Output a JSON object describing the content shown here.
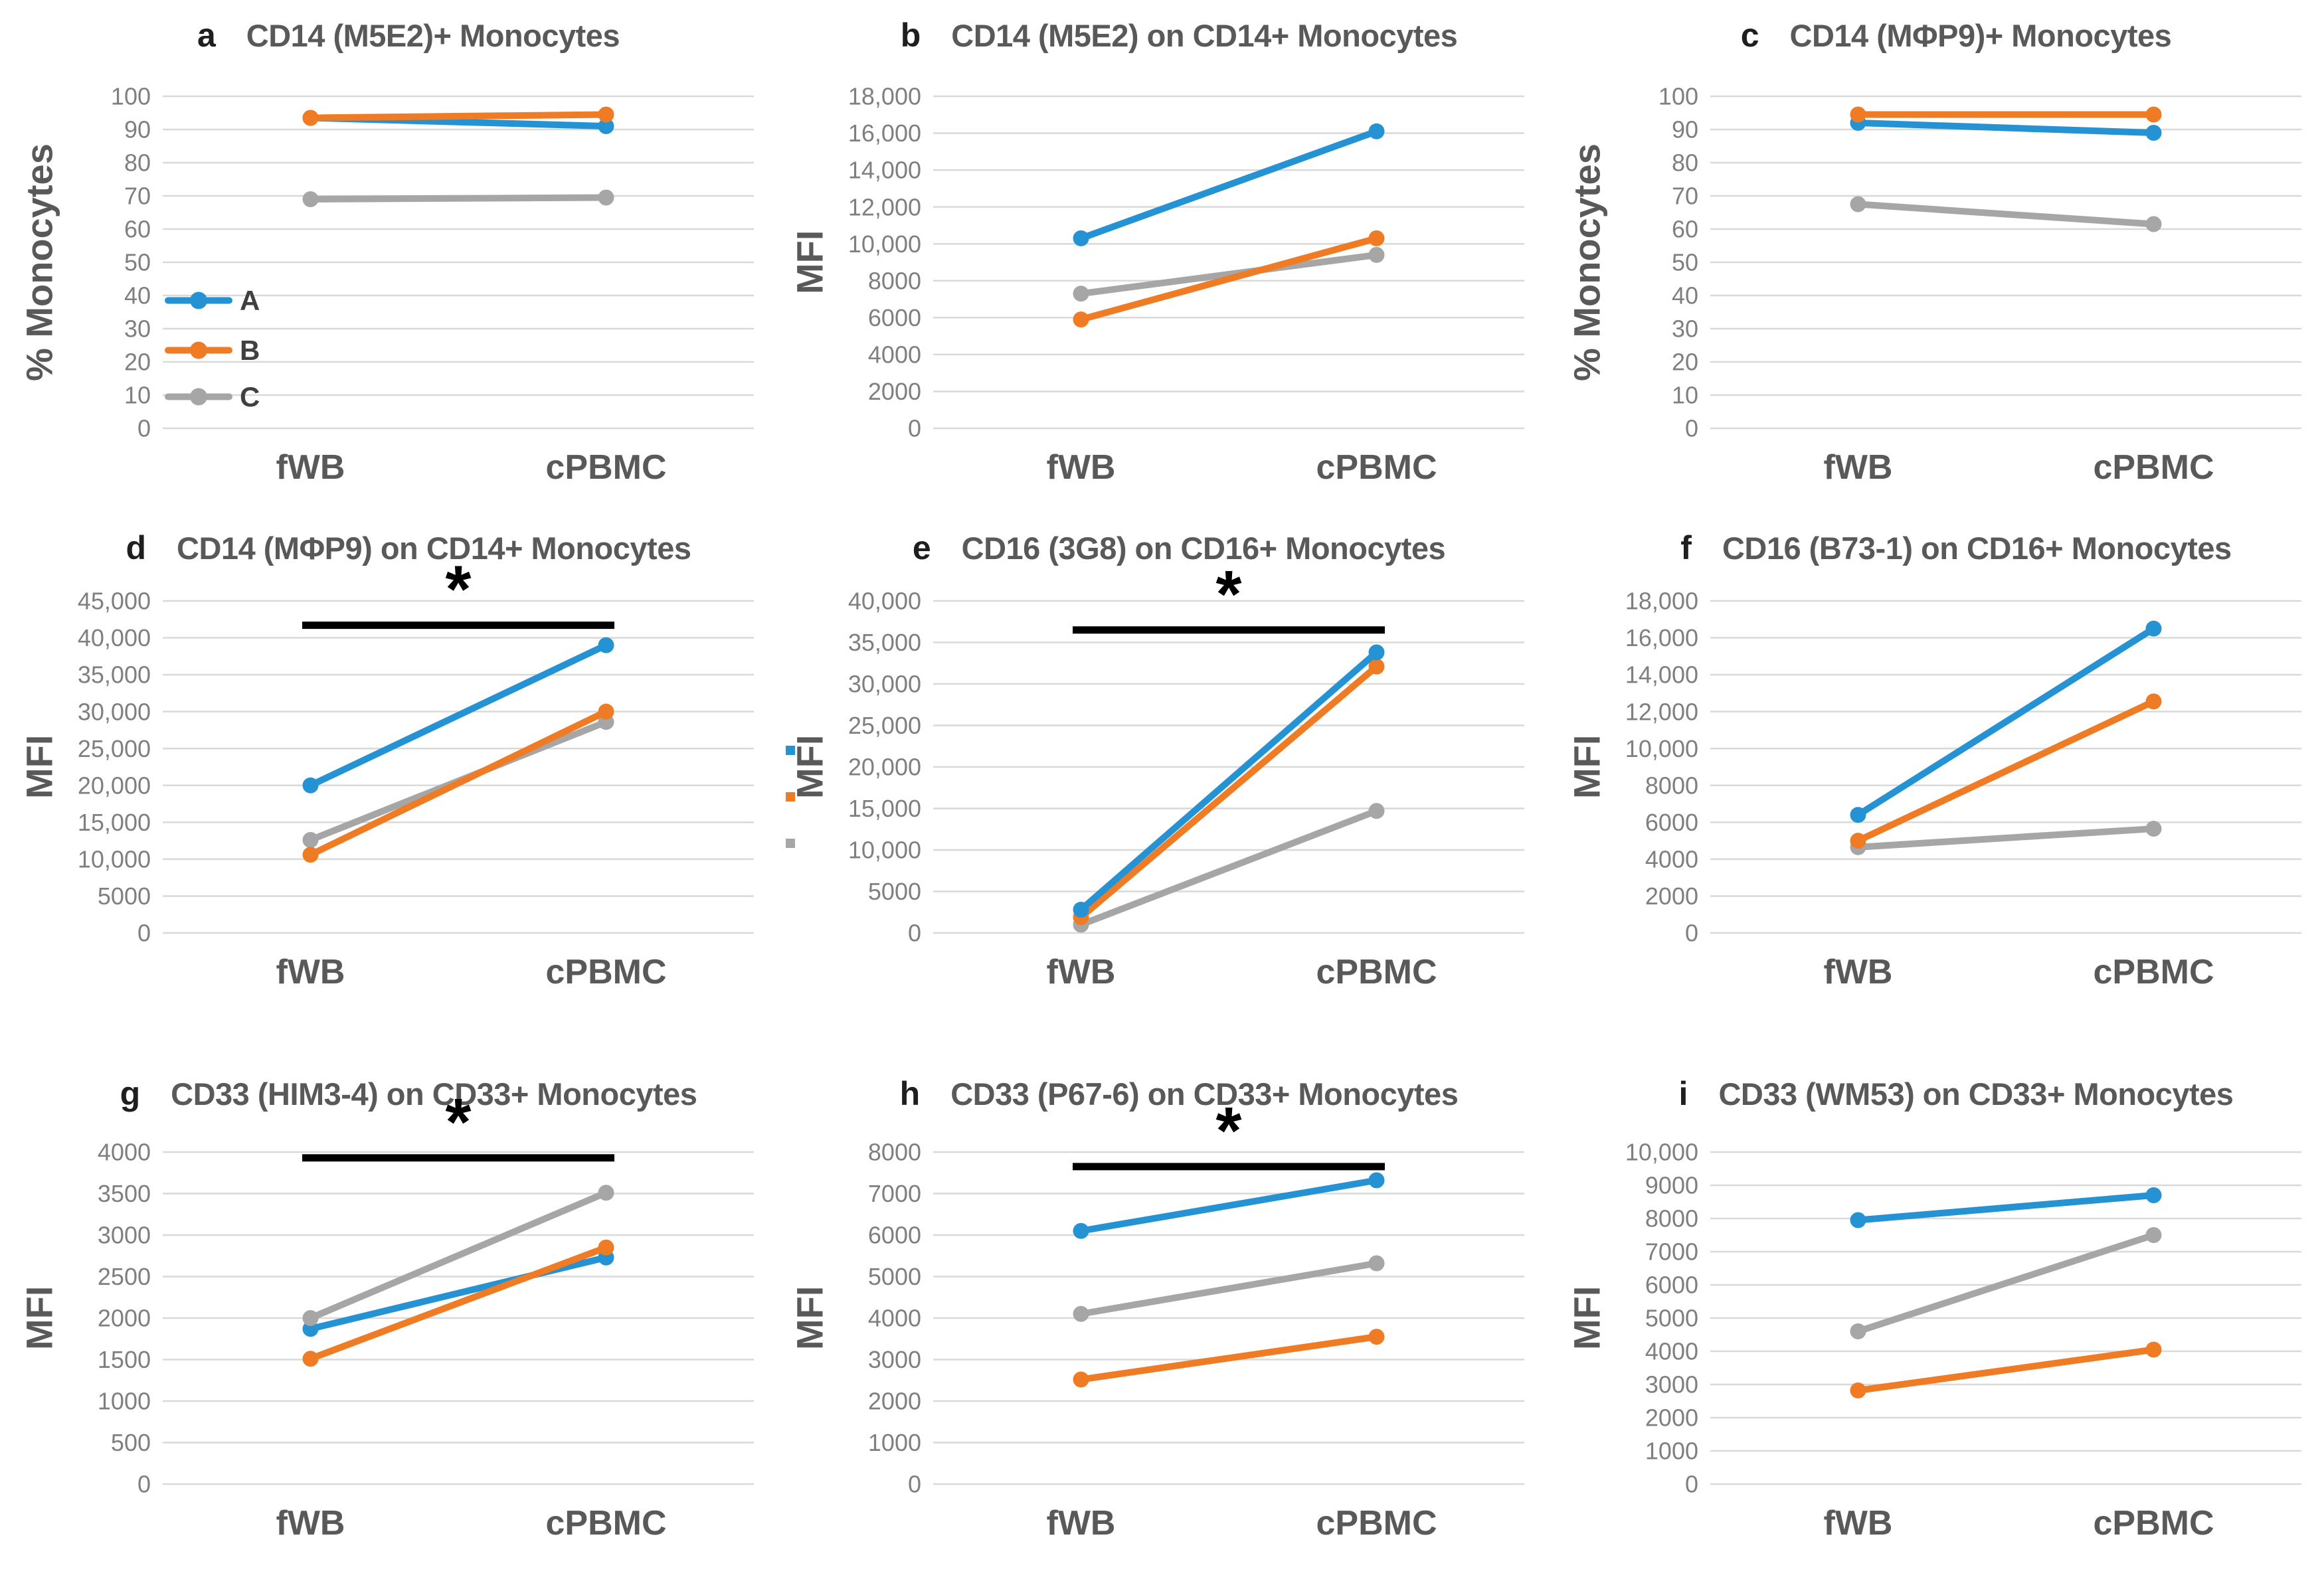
{
  "figure": {
    "background": "#FFFFFF"
  },
  "palette": {
    "A": "#2593D3",
    "B": "#F07B25",
    "C": "#A6A6A6",
    "grid": "#D9D9D9",
    "tick_text": "#7F7F7F",
    "axis_text": "#595959",
    "letter_text": "#1F1F1F",
    "legend_text": "#404040",
    "sig": "#000000"
  },
  "chart_data": [
    {
      "id": "a",
      "type": "line",
      "letter": "a",
      "title": "CD14 (M5E2)+ Monocytes",
      "ylabel": "% Monocytes",
      "ymax": 100,
      "ylim": [
        0,
        100
      ],
      "ticks": [
        "100",
        "90",
        "80",
        "70",
        "60",
        "50",
        "40",
        "30",
        "20",
        "10",
        "0"
      ],
      "categories": [
        "fWB",
        "cPBMC"
      ],
      "series": [
        {
          "name": "C",
          "color_key": "C",
          "values": [
            69,
            69.5
          ]
        },
        {
          "name": "A",
          "color_key": "A",
          "values": [
            93.5,
            91
          ]
        },
        {
          "name": "B",
          "color_key": "B",
          "values": [
            93.5,
            94.5
          ]
        }
      ],
      "legend": [
        {
          "label": "A",
          "color_key": "A",
          "at_value": 38.5
        },
        {
          "label": "B",
          "color_key": "B",
          "at_value": 23.5
        },
        {
          "label": "C",
          "color_key": "C",
          "at_value": 9.5
        }
      ]
    },
    {
      "id": "b",
      "type": "line",
      "letter": "b",
      "title": "CD14 (M5E2) on CD14+ Monocytes",
      "ylabel": "MFI",
      "ymax": 18000,
      "ylim": [
        0,
        18000
      ],
      "ticks": [
        "18,000",
        "16,000",
        "14,000",
        "12,000",
        "10,000",
        "8000",
        "6000",
        "4000",
        "2000",
        "0"
      ],
      "categories": [
        "fWB",
        "cPBMC"
      ],
      "series": [
        {
          "name": "C",
          "color_key": "C",
          "values": [
            7300,
            9400
          ]
        },
        {
          "name": "B",
          "color_key": "B",
          "values": [
            5900,
            10300
          ]
        },
        {
          "name": "A",
          "color_key": "A",
          "values": [
            10300,
            16100
          ]
        }
      ]
    },
    {
      "id": "c",
      "type": "line",
      "letter": "c",
      "title": "CD14 (MΦP9)+ Monocytes",
      "ylabel": "% Monocytes",
      "ymax": 100,
      "ylim": [
        0,
        100
      ],
      "ticks": [
        "100",
        "90",
        "80",
        "70",
        "60",
        "50",
        "40",
        "30",
        "20",
        "10",
        "0"
      ],
      "categories": [
        "fWB",
        "cPBMC"
      ],
      "series": [
        {
          "name": "C",
          "color_key": "C",
          "values": [
            67.5,
            61.5
          ]
        },
        {
          "name": "A",
          "color_key": "A",
          "values": [
            92,
            89
          ]
        },
        {
          "name": "B",
          "color_key": "B",
          "values": [
            94.5,
            94.5
          ]
        }
      ]
    },
    {
      "id": "d",
      "type": "line",
      "letter": "d",
      "title": "CD14 (MΦP9) on CD14+ Monocytes",
      "ylabel": "MFI",
      "ymax": 45000,
      "ylim": [
        0,
        45000
      ],
      "ticks": [
        "45,000",
        "40,000",
        "35,000",
        "30,000",
        "25,000",
        "20,000",
        "15,000",
        "10,000",
        "5000",
        "0"
      ],
      "categories": [
        "fWB",
        "cPBMC"
      ],
      "sig": {
        "label": "*",
        "y": 41700
      },
      "series": [
        {
          "name": "C",
          "color_key": "C",
          "values": [
            12600,
            28600
          ]
        },
        {
          "name": "B",
          "color_key": "B",
          "values": [
            10600,
            30000
          ]
        },
        {
          "name": "A",
          "color_key": "A",
          "values": [
            20000,
            39000
          ]
        }
      ]
    },
    {
      "id": "e",
      "type": "line",
      "letter": "e",
      "title": "CD16 (3G8) on CD16+ Monocytes",
      "ylabel": "MFI",
      "ymax": 40000,
      "ylim": [
        0,
        40000
      ],
      "ticks": [
        "40,000",
        "35,000",
        "30,000",
        "25,000",
        "20,000",
        "15,000",
        "10,000",
        "5000",
        "0"
      ],
      "categories": [
        "fWB",
        "cPBMC"
      ],
      "sig": {
        "label": "*",
        "y": 36500
      },
      "series": [
        {
          "name": "C",
          "color_key": "C",
          "values": [
            1000,
            14700
          ]
        },
        {
          "name": "B",
          "color_key": "B",
          "values": [
            1900,
            32100
          ]
        },
        {
          "name": "A",
          "color_key": "A",
          "values": [
            2800,
            33800
          ]
        }
      ],
      "stray_markers": [
        {
          "color_key": "A"
        },
        {
          "color_key": "B"
        },
        {
          "color_key": "C"
        }
      ]
    },
    {
      "id": "f",
      "type": "line",
      "letter": "f",
      "title": "CD16 (B73-1) on CD16+ Monocytes",
      "ylabel": "MFI",
      "ymax": 18000,
      "ylim": [
        0,
        18000
      ],
      "ticks": [
        "18,000",
        "16,000",
        "14,000",
        "12,000",
        "10,000",
        "8000",
        "6000",
        "4000",
        "2000",
        "0"
      ],
      "categories": [
        "fWB",
        "cPBMC"
      ],
      "series": [
        {
          "name": "C",
          "color_key": "C",
          "values": [
            4650,
            5650
          ]
        },
        {
          "name": "B",
          "color_key": "B",
          "values": [
            5000,
            12550
          ]
        },
        {
          "name": "A",
          "color_key": "A",
          "values": [
            6400,
            16500
          ]
        }
      ]
    },
    {
      "id": "g",
      "type": "line",
      "letter": "g",
      "title": "CD33 (HIM3-4) on CD33+ Monocytes",
      "ylabel": "MFI",
      "ymax": 4000,
      "ylim": [
        0,
        4000
      ],
      "ticks": [
        "4000",
        "3500",
        "3000",
        "2500",
        "2000",
        "1500",
        "1000",
        "500",
        "0"
      ],
      "categories": [
        "fWB",
        "cPBMC"
      ],
      "sig": {
        "label": "*",
        "y": 3930
      },
      "series": [
        {
          "name": "A",
          "color_key": "A",
          "values": [
            1870,
            2730
          ]
        },
        {
          "name": "B",
          "color_key": "B",
          "values": [
            1510,
            2850
          ]
        },
        {
          "name": "C",
          "color_key": "C",
          "values": [
            2000,
            3510
          ]
        }
      ]
    },
    {
      "id": "h",
      "type": "line",
      "letter": "h",
      "title": "CD33 (P67-6) on CD33+ Monocytes",
      "ylabel": "MFI",
      "ymax": 8000,
      "ylim": [
        0,
        8000
      ],
      "ticks": [
        "8000",
        "7000",
        "6000",
        "5000",
        "4000",
        "3000",
        "2000",
        "1000",
        "0"
      ],
      "categories": [
        "fWB",
        "cPBMC"
      ],
      "sig": {
        "label": "*",
        "y": 7650
      },
      "series": [
        {
          "name": "C",
          "color_key": "C",
          "values": [
            4100,
            5320
          ]
        },
        {
          "name": "B",
          "color_key": "B",
          "values": [
            2520,
            3550
          ]
        },
        {
          "name": "A",
          "color_key": "A",
          "values": [
            6100,
            7320
          ]
        }
      ]
    },
    {
      "id": "i",
      "type": "line",
      "letter": "i",
      "title": "CD33 (WM53) on CD33+ Monocytes",
      "ylabel": "MFI",
      "ymax": 10000,
      "ylim": [
        0,
        10000
      ],
      "ticks": [
        "10,000",
        "9000",
        "8000",
        "7000",
        "6000",
        "5000",
        "4000",
        "3000",
        "2000",
        "1000",
        "0"
      ],
      "categories": [
        "fWB",
        "cPBMC"
      ],
      "series": [
        {
          "name": "C",
          "color_key": "C",
          "values": [
            4600,
            7500
          ]
        },
        {
          "name": "B",
          "color_key": "B",
          "values": [
            2820,
            4050
          ]
        },
        {
          "name": "A",
          "color_key": "A",
          "values": [
            7950,
            8700
          ]
        }
      ]
    }
  ]
}
